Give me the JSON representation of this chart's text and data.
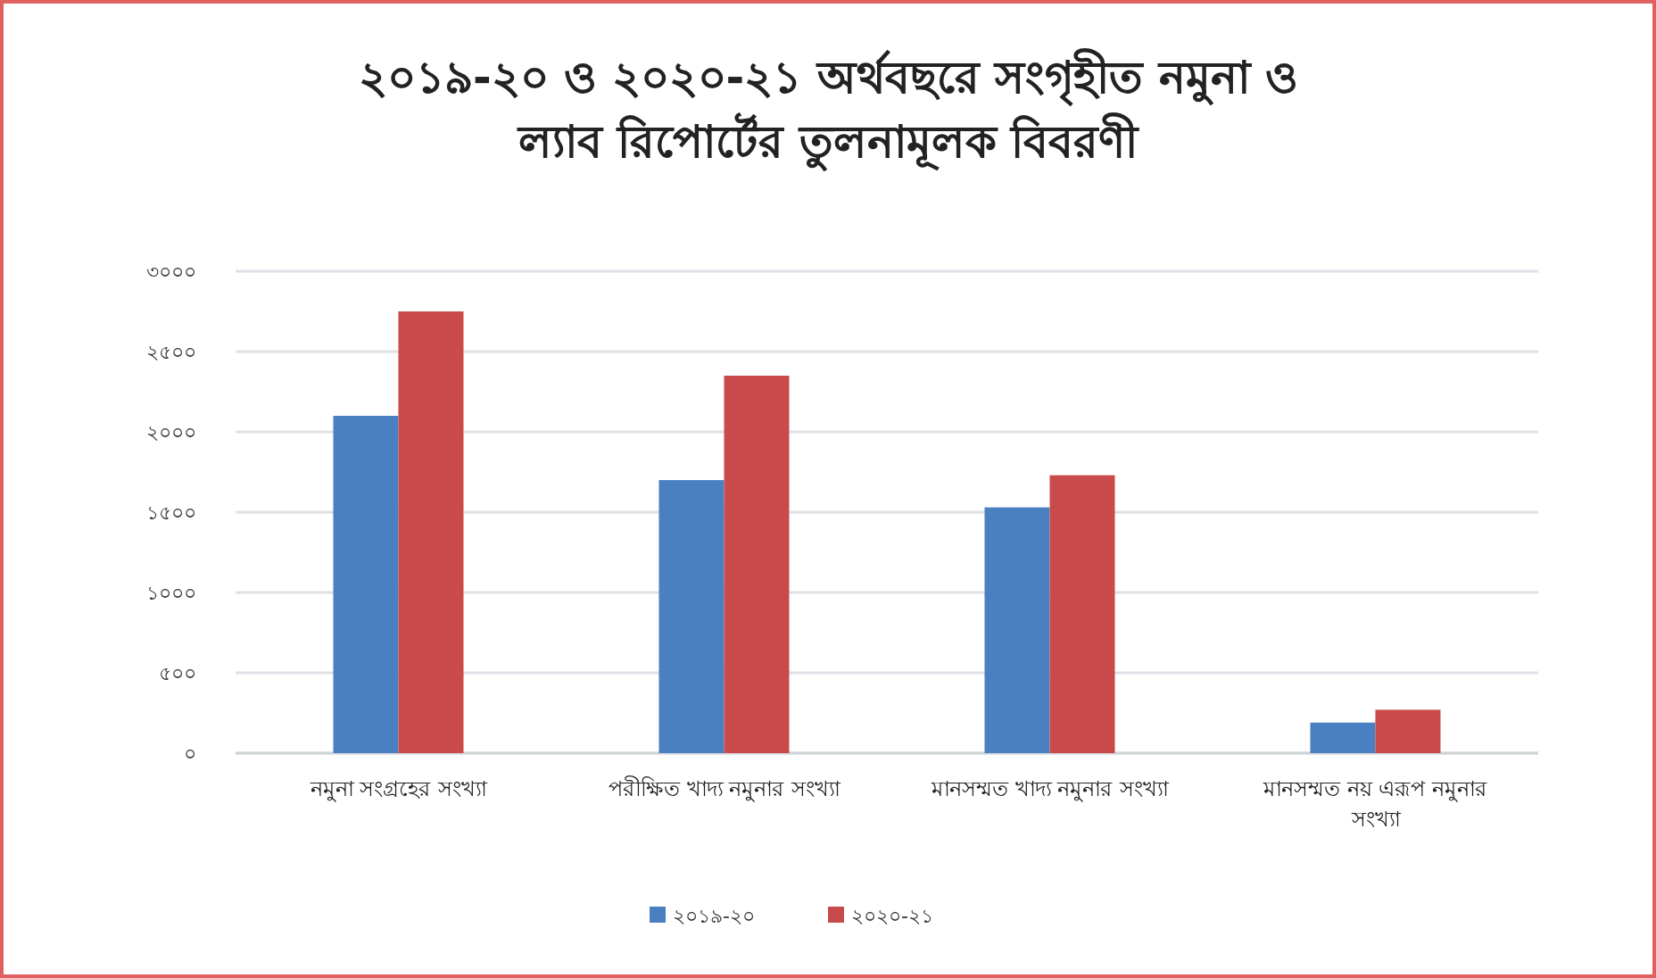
{
  "chart_data": {
    "type": "bar",
    "title": "২০১৯-২০ ও ২০২০-২১ অর্থবছরে সংগৃহীত নমুনা ও ল্যাব রিপোর্টের তুলনামূলক বিবরণী",
    "categories": [
      "নমুনা সংগ্রহের সংখ্যা",
      "পরীক্ষিত খাদ্য নমুনার সংখ্যা",
      "মানসম্মত খাদ্য নমুনার সংখ্যা",
      "মানসম্মত নয় এরূপ নমুনার সংখ্যা"
    ],
    "series": [
      {
        "name": "২০১৯-২০",
        "color": "#4a7fc1",
        "values": [
          2100,
          1700,
          1530,
          190
        ]
      },
      {
        "name": "২০২০-২১",
        "color": "#c94a4a",
        "values": [
          2750,
          2350,
          1730,
          270
        ]
      }
    ],
    "ylim": [
      0,
      3000
    ],
    "yticks": [
      {
        "value": 0,
        "label": "০"
      },
      {
        "value": 500,
        "label": "৫০০"
      },
      {
        "value": 1000,
        "label": "১০০০"
      },
      {
        "value": 1500,
        "label": "১৫০০"
      },
      {
        "value": 2000,
        "label": "২০০০"
      },
      {
        "value": 2500,
        "label": "২৫০০"
      },
      {
        "value": 3000,
        "label": "৩০০০"
      }
    ],
    "grid": "y",
    "legend": "bottom"
  }
}
